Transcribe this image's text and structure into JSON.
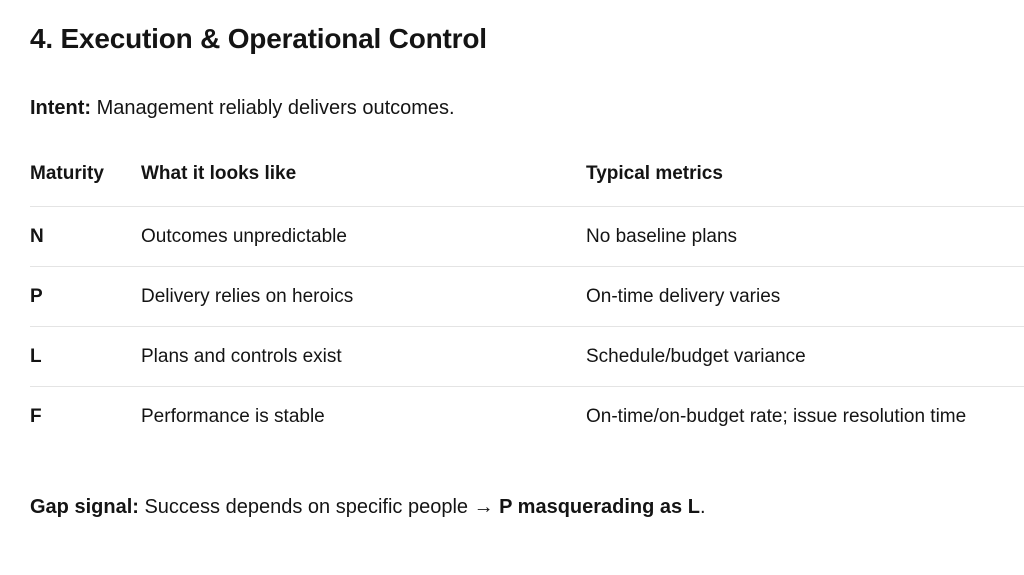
{
  "heading": "4. Execution & Operational Control",
  "intent": {
    "label": "Intent:",
    "text": " Management reliably delivers outcomes."
  },
  "table": {
    "headers": [
      "Maturity",
      "What it looks like",
      "Typical metrics"
    ],
    "rows": [
      {
        "maturity": "N",
        "looks_like": "Outcomes unpredictable",
        "metrics": "No baseline plans"
      },
      {
        "maturity": "P",
        "looks_like": "Delivery relies on heroics",
        "metrics": "On-time delivery varies"
      },
      {
        "maturity": "L",
        "looks_like": "Plans and controls exist",
        "metrics": "Schedule/budget variance"
      },
      {
        "maturity": "F",
        "looks_like": "Performance is stable",
        "metrics": "On-time/on-budget rate; issue resolution time"
      }
    ]
  },
  "gap_signal": {
    "label": "Gap signal:",
    "text": " Success depends on specific people → ",
    "emphasis": "P masquerading as L",
    "suffix": "."
  },
  "colors": {
    "text": "#141414",
    "divider": "#e4e4e4",
    "background": "#ffffff"
  }
}
